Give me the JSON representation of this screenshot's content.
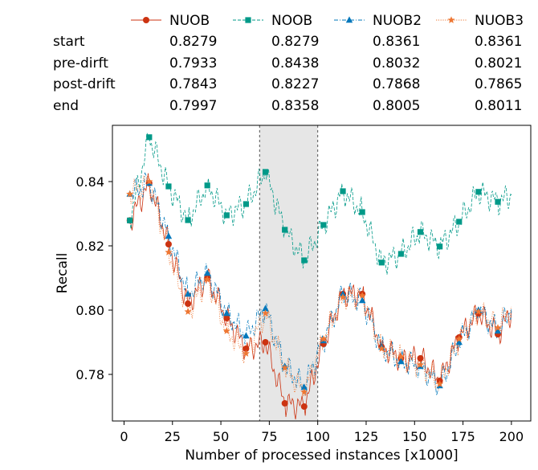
{
  "chart_data": {
    "type": "line",
    "xlabel": "Number of processed instances [x1000]",
    "ylabel": "Recall",
    "xlim": [
      -6,
      210
    ],
    "ylim": [
      0.7655,
      0.8575
    ],
    "xticks": [
      0,
      25,
      50,
      75,
      100,
      125,
      150,
      175,
      200
    ],
    "yticks": [
      0.78,
      0.8,
      0.82,
      0.84
    ],
    "ytick_labels": [
      "0.78",
      "0.80",
      "0.82",
      "0.84"
    ],
    "grid": false,
    "drift_region": [
      70,
      100
    ],
    "drift_region_color": "#e6e6e6",
    "table": {
      "row_labels": [
        "start",
        "pre-dirft",
        "post-drift",
        "end"
      ],
      "columns": [
        "NUOB",
        "NOOB",
        "NUOB2",
        "NUOB3"
      ],
      "values": [
        [
          "0.8279",
          "0.8279",
          "0.8361",
          "0.8361"
        ],
        [
          "0.7933",
          "0.8438",
          "0.8032",
          "0.8021"
        ],
        [
          "0.7843",
          "0.8227",
          "0.7868",
          "0.7865"
        ],
        [
          "0.7997",
          "0.8358",
          "0.8005",
          "0.8011"
        ]
      ]
    },
    "series": [
      {
        "name": "NUOB",
        "color": "#cc3311",
        "marker": "circle",
        "line": "solid",
        "x": [
          3,
          13,
          23,
          33,
          43,
          53,
          63,
          73,
          83,
          93,
          103,
          113,
          123,
          133,
          143,
          153,
          163,
          173,
          183,
          193,
          200
        ],
        "values": [
          0.8279,
          0.8395,
          0.8205,
          0.802,
          0.81,
          0.7975,
          0.788,
          0.79,
          0.771,
          0.77,
          0.7895,
          0.805,
          0.805,
          0.7885,
          0.785,
          0.785,
          0.778,
          0.7915,
          0.799,
          0.7925,
          0.7997
        ]
      },
      {
        "name": "NOOB",
        "color": "#009988",
        "marker": "square",
        "line": "dashed",
        "x": [
          3,
          13,
          23,
          33,
          43,
          53,
          63,
          73,
          83,
          93,
          103,
          113,
          123,
          133,
          143,
          153,
          163,
          173,
          183,
          193,
          200
        ],
        "values": [
          0.8279,
          0.8538,
          0.8385,
          0.828,
          0.8388,
          0.8295,
          0.833,
          0.843,
          0.825,
          0.8155,
          0.8265,
          0.837,
          0.8305,
          0.8148,
          0.8175,
          0.8243,
          0.8198,
          0.8275,
          0.8368,
          0.8337,
          0.8358
        ]
      },
      {
        "name": "NUOB2",
        "color": "#0077bb",
        "marker": "triangle",
        "line": "dashdot",
        "x": [
          3,
          13,
          23,
          33,
          43,
          53,
          63,
          73,
          83,
          93,
          103,
          113,
          123,
          133,
          143,
          153,
          163,
          173,
          183,
          193,
          200
        ],
        "values": [
          0.8361,
          0.8395,
          0.823,
          0.805,
          0.8115,
          0.799,
          0.792,
          0.8005,
          0.7825,
          0.776,
          0.7905,
          0.805,
          0.803,
          0.7885,
          0.784,
          0.7825,
          0.7765,
          0.79,
          0.8,
          0.7935,
          0.8005
        ]
      },
      {
        "name": "NUOB3",
        "color": "#ee7733",
        "marker": "star",
        "line": "dotted",
        "x": [
          3,
          13,
          23,
          33,
          43,
          53,
          63,
          73,
          83,
          93,
          103,
          113,
          123,
          133,
          143,
          153,
          163,
          173,
          183,
          193,
          200
        ],
        "values": [
          0.8361,
          0.84,
          0.818,
          0.7995,
          0.8095,
          0.7935,
          0.7865,
          0.799,
          0.782,
          0.7745,
          0.791,
          0.804,
          0.8045,
          0.788,
          0.7855,
          0.783,
          0.777,
          0.791,
          0.7995,
          0.7945,
          0.8011
        ]
      }
    ]
  }
}
